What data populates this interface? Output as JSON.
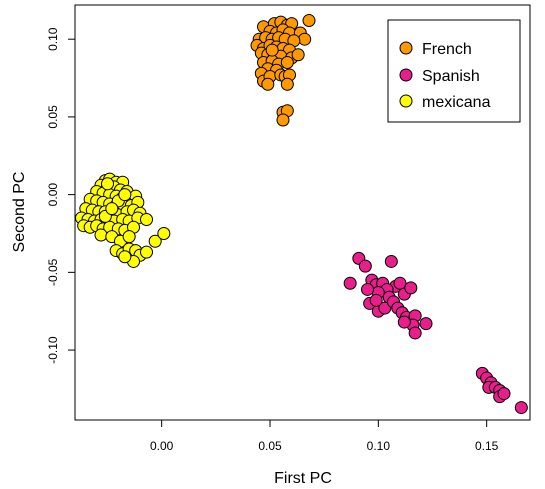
{
  "chart_data": {
    "type": "scatter",
    "xlabel": "First PC",
    "ylabel": "Second PC",
    "xlim": [
      -0.04,
      0.17
    ],
    "ylim": [
      -0.145,
      0.122
    ],
    "x_ticks": [
      {
        "value": 0.0,
        "label": "0.00"
      },
      {
        "value": 0.05,
        "label": "0.05"
      },
      {
        "value": 0.1,
        "label": "0.10"
      },
      {
        "value": 0.15,
        "label": "0.15"
      }
    ],
    "y_ticks": [
      {
        "value": 0.1,
        "label": "0.10"
      },
      {
        "value": 0.05,
        "label": "0.05"
      },
      {
        "value": 0.0,
        "label": "0.00"
      },
      {
        "value": -0.05,
        "label": "-0.05"
      },
      {
        "value": -0.1,
        "label": "-0.10"
      }
    ],
    "grid": false,
    "legend_position": "top-right",
    "series": [
      {
        "name": "French",
        "color": "#ff9900",
        "points": [
          [
            0.047,
            0.108
          ],
          [
            0.052,
            0.11
          ],
          [
            0.055,
            0.111
          ],
          [
            0.058,
            0.109
          ],
          [
            0.06,
            0.11
          ],
          [
            0.068,
            0.112
          ],
          [
            0.05,
            0.105
          ],
          [
            0.053,
            0.104
          ],
          [
            0.056,
            0.106
          ],
          [
            0.059,
            0.104
          ],
          [
            0.064,
            0.104
          ],
          [
            0.066,
            0.1
          ],
          [
            0.045,
            0.1
          ],
          [
            0.048,
            0.101
          ],
          [
            0.051,
            0.1
          ],
          [
            0.054,
            0.101
          ],
          [
            0.057,
            0.1
          ],
          [
            0.061,
            0.099
          ],
          [
            0.044,
            0.096
          ],
          [
            0.047,
            0.094
          ],
          [
            0.05,
            0.096
          ],
          [
            0.053,
            0.095
          ],
          [
            0.056,
            0.094
          ],
          [
            0.059,
            0.093
          ],
          [
            0.046,
            0.091
          ],
          [
            0.049,
            0.09
          ],
          [
            0.052,
            0.09
          ],
          [
            0.055,
            0.089
          ],
          [
            0.06,
            0.088
          ],
          [
            0.063,
            0.09
          ],
          [
            0.047,
            0.085
          ],
          [
            0.051,
            0.086
          ],
          [
            0.054,
            0.084
          ],
          [
            0.058,
            0.085
          ],
          [
            0.049,
            0.081
          ],
          [
            0.053,
            0.08
          ],
          [
            0.046,
            0.078
          ],
          [
            0.047,
            0.073
          ],
          [
            0.05,
            0.076
          ],
          [
            0.049,
            0.071
          ],
          [
            0.055,
            0.077
          ],
          [
            0.057,
            0.076
          ],
          [
            0.059,
            0.077
          ],
          [
            0.058,
            0.071
          ],
          [
            0.056,
            0.053
          ],
          [
            0.058,
            0.054
          ],
          [
            0.056,
            0.048
          ],
          [
            0.051,
            0.093
          ]
        ]
      },
      {
        "name": "Spanish",
        "color": "#e91e8c",
        "points": [
          [
            0.087,
            -0.057
          ],
          [
            0.091,
            -0.041
          ],
          [
            0.094,
            -0.046
          ],
          [
            0.097,
            -0.055
          ],
          [
            0.099,
            -0.058
          ],
          [
            0.102,
            -0.057
          ],
          [
            0.106,
            -0.043
          ],
          [
            0.108,
            -0.059
          ],
          [
            0.11,
            -0.057
          ],
          [
            0.104,
            -0.061
          ],
          [
            0.1,
            -0.063
          ],
          [
            0.095,
            -0.061
          ],
          [
            0.105,
            -0.066
          ],
          [
            0.112,
            -0.064
          ],
          [
            0.115,
            -0.06
          ],
          [
            0.096,
            -0.07
          ],
          [
            0.1,
            -0.075
          ],
          [
            0.103,
            -0.073
          ],
          [
            0.107,
            -0.069
          ],
          [
            0.109,
            -0.073
          ],
          [
            0.111,
            -0.076
          ],
          [
            0.113,
            -0.079
          ],
          [
            0.117,
            -0.078
          ],
          [
            0.122,
            -0.083
          ],
          [
            0.116,
            -0.084
          ],
          [
            0.112,
            -0.082
          ],
          [
            0.117,
            -0.089
          ],
          [
            0.099,
            -0.068
          ],
          [
            0.148,
            -0.115
          ],
          [
            0.15,
            -0.118
          ],
          [
            0.152,
            -0.121
          ],
          [
            0.151,
            -0.124
          ],
          [
            0.154,
            -0.124
          ],
          [
            0.156,
            -0.126
          ],
          [
            0.156,
            -0.13
          ],
          [
            0.158,
            -0.128
          ],
          [
            0.166,
            -0.137
          ]
        ]
      },
      {
        "name": "mexicana",
        "color": "#ffff00",
        "points": [
          [
            -0.026,
            0.009
          ],
          [
            -0.024,
            0.01
          ],
          [
            -0.021,
            0.008
          ],
          [
            -0.018,
            0.008
          ],
          [
            -0.028,
            0.006
          ],
          [
            -0.025,
            0.005
          ],
          [
            -0.022,
            0.005
          ],
          [
            -0.019,
            0.003
          ],
          [
            -0.016,
            0.002
          ],
          [
            -0.03,
            0.002
          ],
          [
            -0.027,
            0.001
          ],
          [
            -0.024,
            0.0
          ],
          [
            -0.021,
            -0.001
          ],
          [
            -0.018,
            -0.002
          ],
          [
            -0.015,
            -0.003
          ],
          [
            -0.012,
            -0.001
          ],
          [
            -0.033,
            -0.003
          ],
          [
            -0.03,
            -0.004
          ],
          [
            -0.027,
            -0.005
          ],
          [
            -0.024,
            -0.006
          ],
          [
            -0.021,
            -0.007
          ],
          [
            -0.018,
            -0.006
          ],
          [
            -0.014,
            -0.007
          ],
          [
            -0.011,
            -0.005
          ],
          [
            -0.035,
            -0.009
          ],
          [
            -0.032,
            -0.01
          ],
          [
            -0.029,
            -0.011
          ],
          [
            -0.026,
            -0.011
          ],
          [
            -0.023,
            -0.012
          ],
          [
            -0.02,
            -0.013
          ],
          [
            -0.016,
            -0.011
          ],
          [
            -0.013,
            -0.01
          ],
          [
            -0.01,
            -0.012
          ],
          [
            -0.037,
            -0.015
          ],
          [
            -0.034,
            -0.016
          ],
          [
            -0.031,
            -0.017
          ],
          [
            -0.028,
            -0.016
          ],
          [
            -0.025,
            -0.018
          ],
          [
            -0.022,
            -0.017
          ],
          [
            -0.018,
            -0.016
          ],
          [
            -0.015,
            -0.017
          ],
          [
            -0.011,
            -0.015
          ],
          [
            -0.007,
            -0.016
          ],
          [
            -0.036,
            -0.02
          ],
          [
            -0.033,
            -0.021
          ],
          [
            -0.03,
            -0.02
          ],
          [
            -0.027,
            -0.022
          ],
          [
            -0.024,
            -0.021
          ],
          [
            -0.02,
            -0.022
          ],
          [
            -0.017,
            -0.023
          ],
          [
            -0.013,
            -0.021
          ],
          [
            -0.028,
            -0.026
          ],
          [
            -0.023,
            -0.027
          ],
          [
            -0.019,
            -0.03
          ],
          [
            -0.015,
            -0.027
          ],
          [
            -0.021,
            -0.036
          ],
          [
            -0.018,
            -0.038
          ],
          [
            -0.015,
            -0.035
          ],
          [
            -0.012,
            -0.036
          ],
          [
            -0.01,
            -0.039
          ],
          [
            -0.013,
            -0.043
          ],
          [
            -0.017,
            -0.04
          ],
          [
            -0.007,
            -0.037
          ],
          [
            -0.003,
            -0.03
          ],
          [
            0.001,
            -0.025
          ],
          [
            -0.026,
            -0.014
          ],
          [
            -0.02,
            -0.004
          ],
          [
            -0.025,
            0.007
          ],
          [
            -0.017,
            0.0
          ],
          [
            -0.023,
            -0.009
          ]
        ]
      }
    ]
  }
}
